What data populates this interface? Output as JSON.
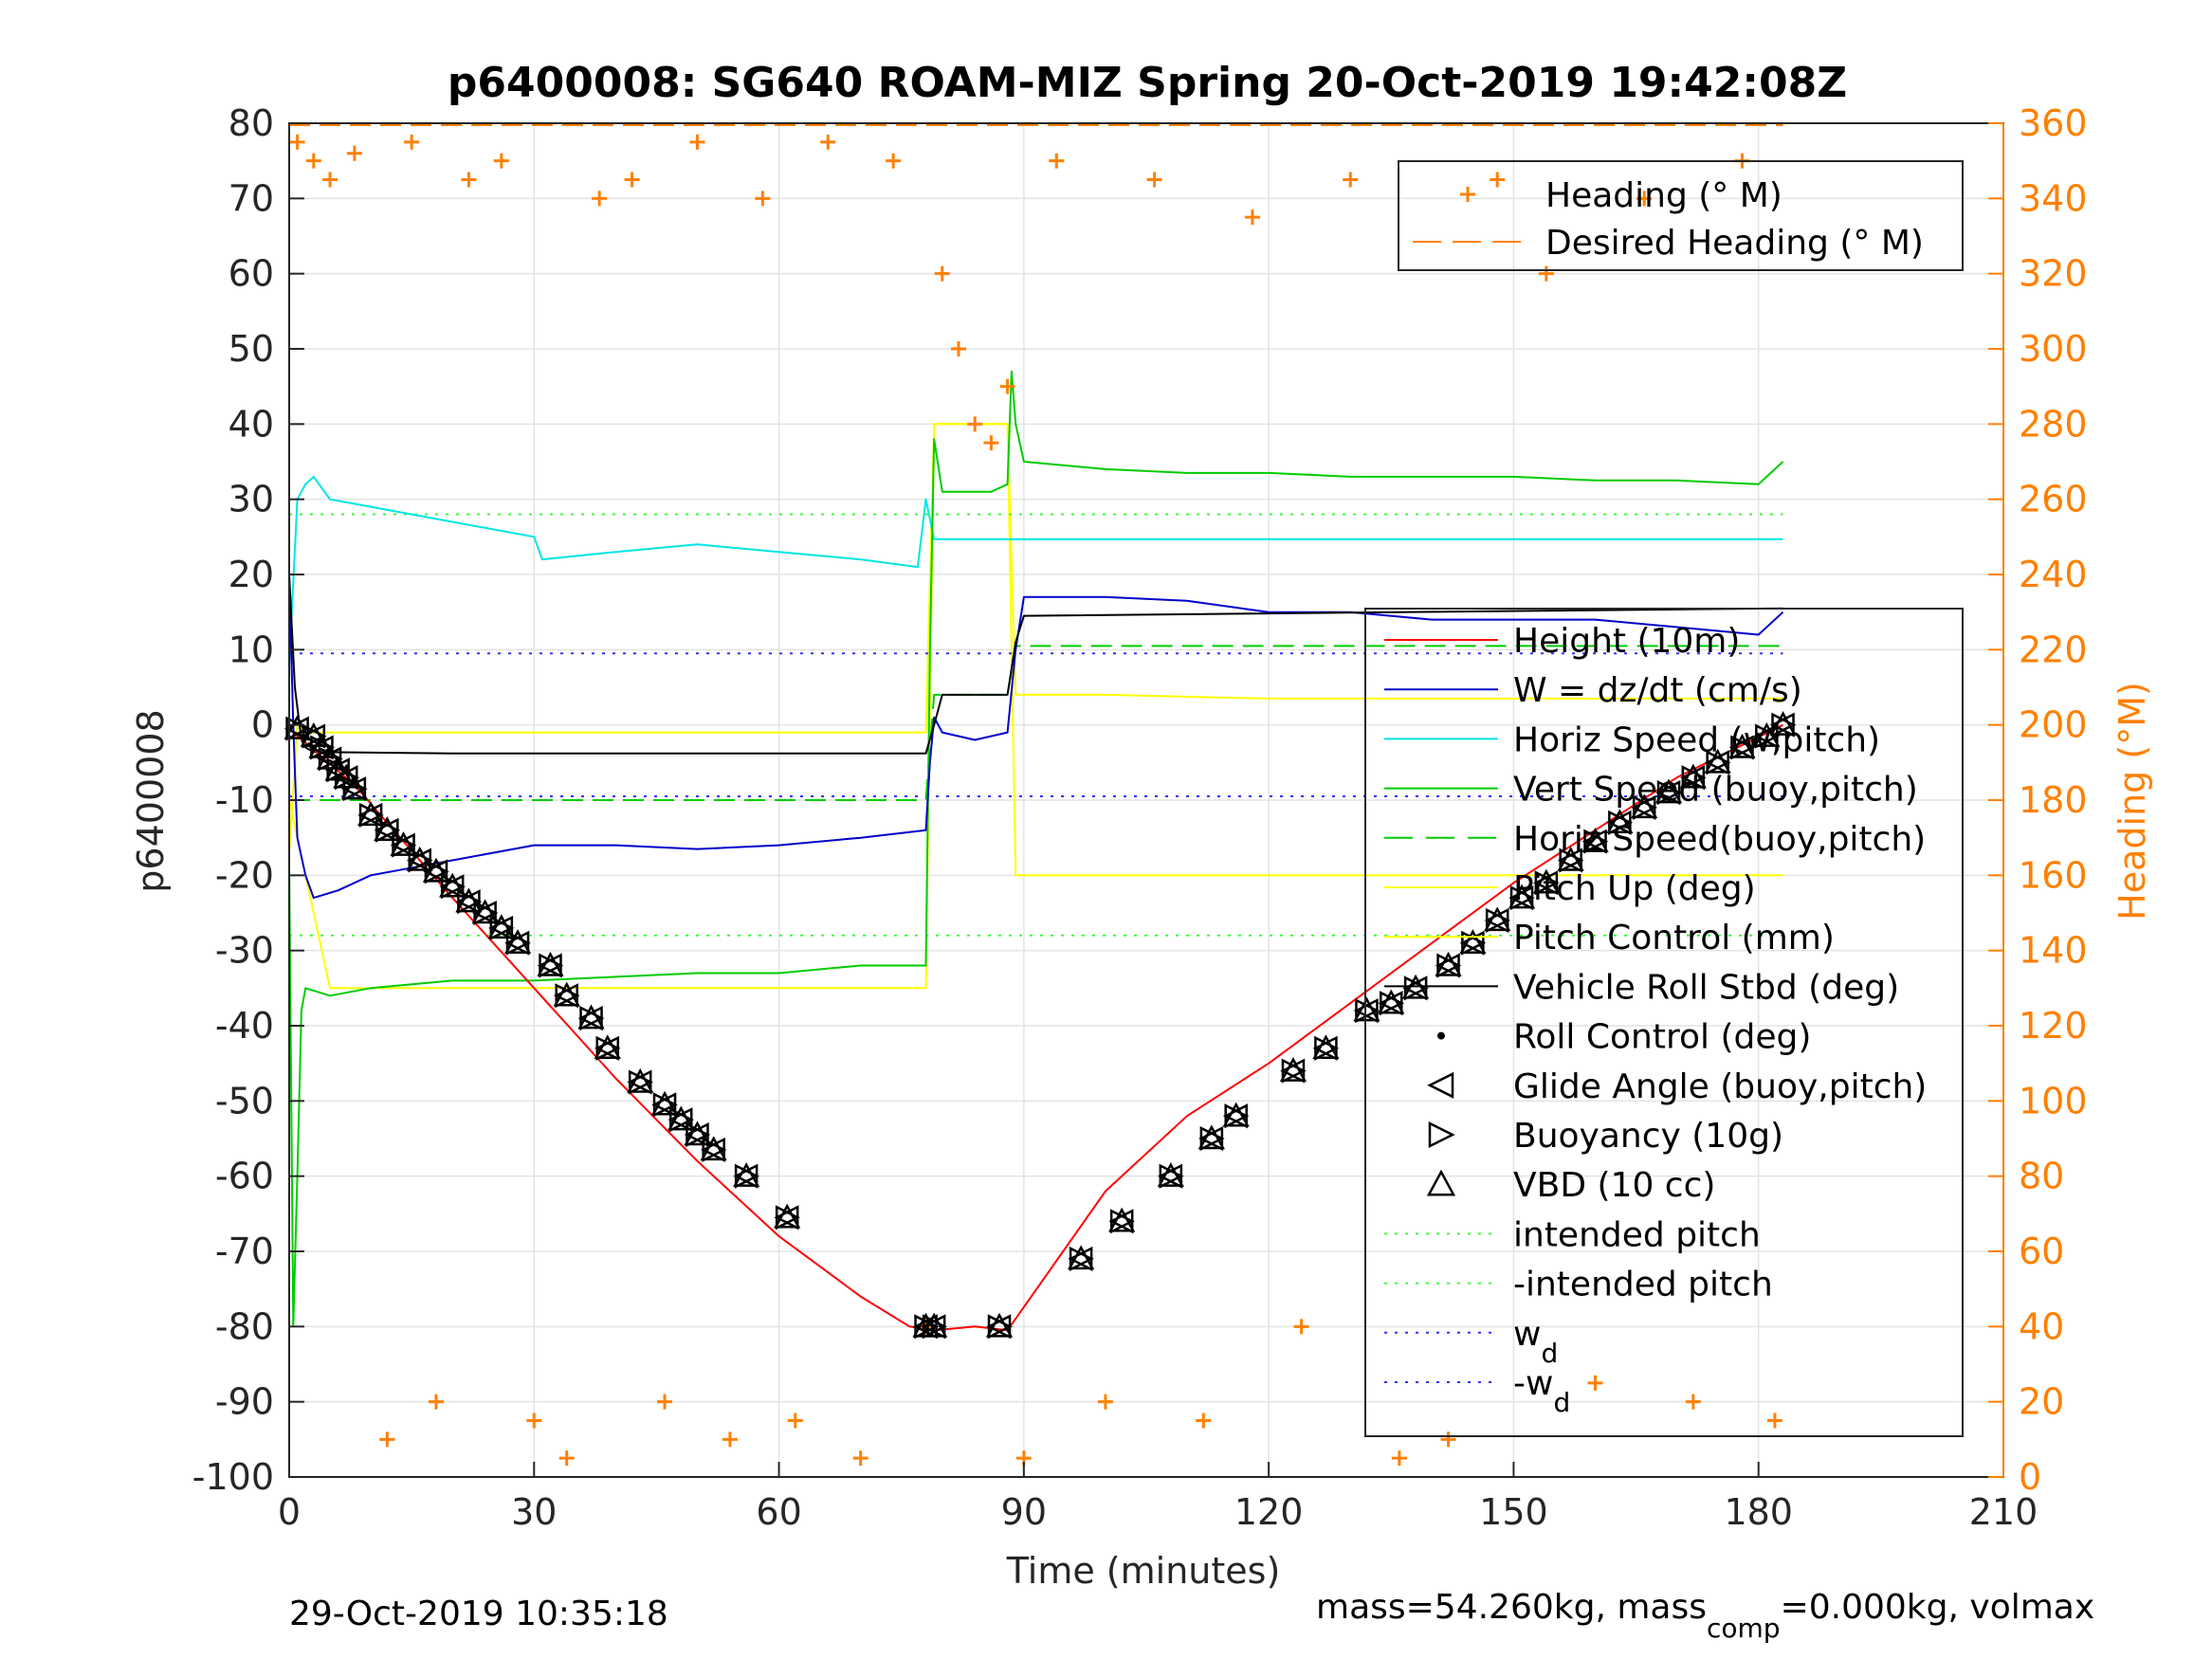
{
  "chart_data": {
    "type": "line",
    "title": "p6400008: SG640 ROAM-MIZ Spring 20-Oct-2019 19:42:08Z",
    "xlabel": "Time (minutes)",
    "ylabel": "p6400008",
    "ylabel_right": "Heading (°M)",
    "xlim": [
      0,
      210
    ],
    "ylim": [
      -100,
      80
    ],
    "ylim_right": [
      0,
      360
    ],
    "xticks": [
      0,
      30,
      60,
      90,
      120,
      150,
      180,
      210
    ],
    "yticks": [
      -100,
      -90,
      -80,
      -70,
      -60,
      -50,
      -40,
      -30,
      -20,
      -10,
      0,
      10,
      20,
      30,
      40,
      50,
      60,
      70,
      80
    ],
    "yticks_right": [
      0,
      20,
      40,
      60,
      80,
      100,
      120,
      140,
      160,
      180,
      200,
      220,
      240,
      260,
      280,
      300,
      320,
      340,
      360
    ],
    "grid": true,
    "legend_top": [
      "Heading (° M)",
      "Desired Heading (° M)"
    ],
    "legend_main": [
      "Height (10m)",
      "W = dz/dt (cm/s)",
      "Horiz Speed (w,pitch)",
      "Vert Speed (buoy,pitch)",
      "Horiz Speed(buoy,pitch)",
      "Pitch Up (deg)",
      "Pitch Control (mm)",
      "Vehicle Roll Stbd (deg)",
      "Roll Control (deg)",
      "Glide Angle (buoy,pitch)",
      "Buoyancy (10g)",
      "VBD (10 cc)",
      "intended pitch",
      "-intended pitch",
      "w",
      "-w"
    ],
    "legend_main_subscripts": {
      "14": "d",
      "15": "d"
    },
    "series": [
      {
        "name": "Height (10m)",
        "color": "#ff0000",
        "x": [
          0,
          8,
          20,
          30,
          40,
          50,
          60,
          70,
          76,
          79,
          84,
          88,
          100,
          110,
          120,
          130,
          140,
          150,
          160,
          170,
          183
        ],
        "y": [
          -0.5,
          -8,
          -23,
          -35,
          -47,
          -58,
          -68,
          -76,
          -80,
          -80.5,
          -80,
          -80.5,
          -62,
          -52,
          -45,
          -37,
          -29,
          -21,
          -14,
          -7,
          0
        ]
      },
      {
        "name": "W = dz/dt (cm/s)",
        "color": "#0000cc",
        "x": [
          0,
          0.5,
          1,
          2,
          3,
          6,
          10,
          20,
          30,
          40,
          50,
          60,
          70,
          78,
          78.5,
          79,
          80,
          84,
          88,
          89,
          90,
          100,
          110,
          120,
          130,
          140,
          150,
          160,
          170,
          180,
          183
        ],
        "y": [
          20,
          0,
          -15,
          -20,
          -23,
          -22,
          -20,
          -18,
          -16,
          -16,
          -16.5,
          -16,
          -15,
          -14,
          -5,
          1,
          -1,
          -2,
          -1,
          10,
          17,
          17,
          16.5,
          15,
          15,
          14,
          14,
          14,
          13,
          12,
          15
        ]
      },
      {
        "name": "Horiz Speed (w,pitch)",
        "color": "#00e5e5",
        "x": [
          0,
          1,
          2,
          3,
          5,
          10,
          20,
          30,
          31,
          40,
          50,
          60,
          70,
          77,
          78,
          79,
          80,
          90,
          100,
          120,
          150,
          183
        ],
        "y": [
          8,
          30,
          32,
          33,
          30,
          29,
          27,
          25,
          22,
          23,
          24,
          23,
          22,
          21,
          30,
          24.7,
          24.7,
          24.7,
          24.7,
          24.7,
          24.7,
          24.7
        ]
      },
      {
        "name": "Vert Speed (buoy,pitch)",
        "color": "#00cc00",
        "x": [
          0,
          0.5,
          1,
          1.5,
          2,
          5,
          10,
          20,
          30,
          40,
          50,
          60,
          70,
          78,
          78.5,
          79,
          80,
          86,
          88,
          88.5,
          89,
          90,
          100,
          110,
          120,
          130,
          140,
          150,
          160,
          170,
          180,
          183
        ],
        "y": [
          -18,
          -80,
          -60,
          -38,
          -35,
          -36,
          -35,
          -34,
          -34,
          -33.5,
          -33,
          -33,
          -32,
          -32,
          10,
          38,
          31,
          31,
          32,
          47,
          40,
          35,
          34,
          33.5,
          33.5,
          33,
          33,
          33,
          32.5,
          32.5,
          32,
          35
        ]
      },
      {
        "name": "Horiz Speed(buoy,pitch)",
        "color": "#00cc00",
        "dash": true,
        "x": [
          0,
          78,
          79,
          88,
          89,
          183
        ],
        "y": [
          -10,
          -10,
          4,
          4,
          10.5,
          10.5
        ]
      },
      {
        "name": "Pitch Up (deg)",
        "color": "#ffff00",
        "x": [
          0,
          1,
          2,
          5,
          20,
          40,
          60,
          78,
          79,
          88,
          89,
          100,
          120,
          140,
          160,
          180,
          183
        ],
        "y": [
          -17,
          0,
          -1,
          -1,
          -1,
          -1,
          -1,
          -1,
          40,
          40,
          4,
          4,
          3.5,
          3.5,
          3.5,
          3.5,
          3.5
        ]
      },
      {
        "name": "Pitch Control (mm)",
        "color": "#ffff00",
        "x": [
          0,
          5,
          40,
          78,
          79,
          88,
          89,
          183
        ],
        "y": [
          -10,
          -35,
          -35,
          -35,
          40,
          40,
          -20,
          -20
        ]
      },
      {
        "name": "Vehicle Roll Stbd (deg)",
        "color": "#000000",
        "x": [
          0,
          0.7,
          1.5,
          2,
          3,
          20,
          50,
          78,
          79,
          80,
          88,
          89,
          90,
          183
        ],
        "y": [
          20,
          5,
          -2,
          -3,
          -3.6,
          -3.8,
          -3.8,
          -3.8,
          0,
          4,
          4,
          11,
          14.5,
          15.5
        ]
      },
      {
        "name": "intended pitch",
        "color": "#33ff33",
        "x": [
          0,
          183
        ],
        "y": [
          28,
          28
        ]
      },
      {
        "name": "-intended pitch",
        "color": "#33ff33",
        "x": [
          0,
          183
        ],
        "y": [
          -28,
          -28
        ]
      },
      {
        "name": "w_d",
        "color": "#3333ff",
        "x": [
          0,
          183
        ],
        "y": [
          9.5,
          9.5
        ]
      },
      {
        "name": "-w_d",
        "color": "#3333ff",
        "x": [
          0,
          183
        ],
        "y": [
          -9.5,
          -9.5
        ]
      },
      {
        "name": "Heading (° M)",
        "color": "#ff8000",
        "axis": "right",
        "marker": "+",
        "x": [
          1,
          3,
          5,
          8,
          12,
          15,
          18,
          22,
          26,
          30,
          34,
          38,
          42,
          46,
          50,
          54,
          58,
          62,
          66,
          70,
          74,
          78,
          80,
          82,
          84,
          86,
          88,
          90,
          94,
          100,
          106,
          112,
          118,
          124,
          130,
          136,
          142,
          148,
          154,
          160,
          166,
          172,
          178,
          182
        ],
        "y": [
          355,
          350,
          345,
          352,
          10,
          355,
          20,
          345,
          350,
          15,
          5,
          340,
          345,
          20,
          355,
          10,
          340,
          15,
          355,
          5,
          350,
          40,
          320,
          300,
          280,
          275,
          290,
          5,
          350,
          20,
          345,
          15,
          335,
          40,
          345,
          5,
          10,
          345,
          320,
          25,
          340,
          20,
          350,
          15
        ]
      },
      {
        "name": "Desired Heading (° M)",
        "color": "#ff8000",
        "axis": "right",
        "dash": true,
        "x": [
          0,
          183
        ],
        "y": [
          359.5,
          359.5
        ]
      }
    ],
    "markers": {
      "glide_angle_x": [
        1,
        3,
        4,
        5,
        6,
        7,
        8,
        10,
        12,
        14,
        16,
        18,
        20,
        22,
        24,
        26,
        28,
        32,
        34,
        37,
        39,
        43,
        46,
        48,
        50,
        52,
        56,
        61,
        78,
        79,
        87,
        97,
        102,
        108,
        113,
        116,
        123,
        127,
        132,
        135,
        138,
        142,
        145,
        148,
        151,
        154,
        157,
        160,
        163,
        166,
        169,
        172,
        175,
        178,
        181,
        183
      ],
      "glide_angle_y": [
        -0.5,
        -1.5,
        -3,
        -4.5,
        -6,
        -7,
        -8.5,
        -12,
        -14,
        -16,
        -18,
        -19.5,
        -21.5,
        -23.5,
        -25,
        -27,
        -29,
        -32,
        -36,
        -39,
        -43,
        -47.5,
        -50.5,
        -52.5,
        -54.5,
        -56.5,
        -60,
        -65.5,
        -80,
        -80,
        -80,
        -71,
        -66,
        -60,
        -55,
        -52,
        -46,
        -43,
        -38,
        -37,
        -35,
        -32,
        -29,
        -26,
        -23,
        -21,
        -18,
        -15.5,
        -13,
        -11,
        -9,
        -7,
        -5,
        -3,
        -1.5,
        0
      ],
      "glide_angle": "Glide Angle (buoy,pitch)",
      "buoyancy": "Buoyancy (10g)",
      "vbd": "VBD (10 cc)",
      "roll_control": "Roll Control (deg)"
    },
    "annotations": {
      "bottom_left": "29-Oct-2019 10:35:18",
      "bottom_right_prefix": "mass=54.260kg, mass",
      "bottom_right_sub": "comp",
      "bottom_right_suffix": "=0.000kg, volmax"
    }
  }
}
